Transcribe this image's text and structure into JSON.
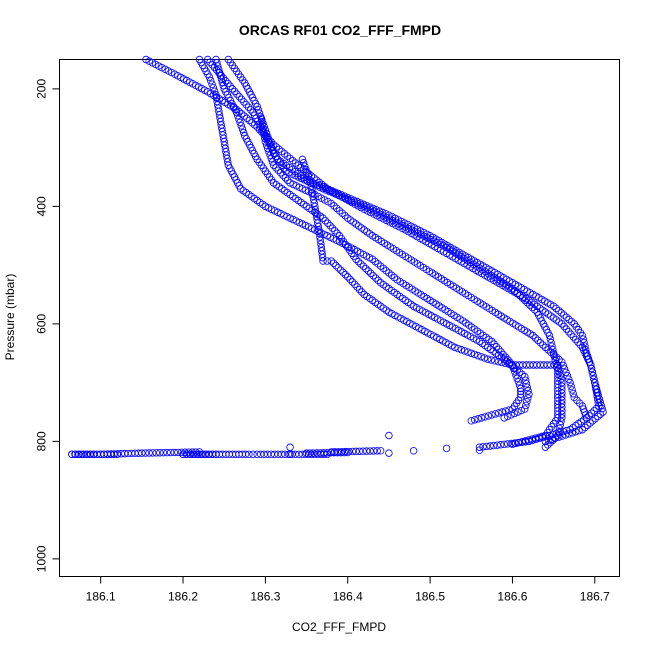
{
  "chart_data": {
    "type": "scatter",
    "title": "ORCAS RF01 CO2_FFF_FMPD",
    "xlabel": "CO2_FFF_FMPD",
    "ylabel": "Pressure (mbar)",
    "xlim": [
      186.05,
      186.73
    ],
    "ylim": [
      1030,
      150
    ],
    "y_inverted": true,
    "x_ticks": [
      186.1,
      186.2,
      186.3,
      186.4,
      186.5,
      186.6,
      186.7
    ],
    "x_tick_labels": [
      "186.1",
      "186.2",
      "186.3",
      "186.4",
      "186.5",
      "186.6",
      "186.7"
    ],
    "y_ticks": [
      200,
      400,
      600,
      800,
      1000
    ],
    "y_tick_labels": [
      "200",
      "400",
      "600",
      "800",
      "1000"
    ],
    "grid": false,
    "marker": "open-circle",
    "color": "#0000ff",
    "series": [
      {
        "points": [
          [
            186.155,
            150
          ],
          [
            186.19,
            175
          ],
          [
            186.23,
            205
          ],
          [
            186.265,
            235
          ],
          [
            186.29,
            265
          ],
          [
            186.31,
            295
          ],
          [
            186.34,
            330
          ],
          [
            186.375,
            370
          ],
          [
            186.42,
            405
          ],
          [
            186.47,
            440
          ],
          [
            186.52,
            480
          ],
          [
            186.57,
            520
          ],
          [
            186.62,
            560
          ],
          [
            186.66,
            600
          ],
          [
            186.685,
            640
          ],
          [
            186.695,
            670
          ],
          [
            186.7,
            700
          ],
          [
            186.71,
            750
          ],
          [
            186.685,
            780
          ],
          [
            186.64,
            800
          ],
          [
            186.56,
            815
          ],
          [
            186.45,
            820
          ],
          [
            186.33,
            822
          ],
          [
            186.24,
            822
          ],
          [
            186.2,
            822
          ]
        ]
      },
      {
        "points": [
          [
            186.22,
            150
          ],
          [
            186.232,
            180
          ],
          [
            186.24,
            210
          ],
          [
            186.245,
            250
          ],
          [
            186.25,
            290
          ],
          [
            186.255,
            330
          ],
          [
            186.27,
            370
          ],
          [
            186.3,
            400
          ],
          [
            186.345,
            430
          ],
          [
            186.39,
            460
          ],
          [
            186.43,
            490
          ],
          [
            186.46,
            525
          ],
          [
            186.5,
            560
          ],
          [
            186.54,
            595
          ],
          [
            186.575,
            630
          ],
          [
            186.6,
            670
          ],
          [
            186.61,
            710
          ],
          [
            186.61,
            725
          ],
          [
            186.6,
            745
          ],
          [
            186.55,
            765
          ],
          [
            186.45,
            790
          ],
          [
            186.33,
            810
          ],
          [
            186.22,
            818
          ],
          [
            186.15,
            820
          ],
          [
            186.1,
            822
          ],
          [
            186.065,
            822
          ]
        ]
      },
      {
        "points": [
          [
            186.23,
            150
          ],
          [
            186.26,
            200
          ],
          [
            186.285,
            240
          ],
          [
            186.3,
            280
          ],
          [
            186.315,
            320
          ],
          [
            186.35,
            355
          ],
          [
            186.4,
            385
          ],
          [
            186.45,
            415
          ],
          [
            186.5,
            450
          ],
          [
            186.55,
            490
          ],
          [
            186.6,
            530
          ],
          [
            186.65,
            570
          ],
          [
            186.675,
            600
          ],
          [
            186.685,
            620
          ],
          [
            186.69,
            650
          ],
          [
            186.695,
            670
          ],
          [
            186.7,
            700
          ],
          [
            186.705,
            740
          ],
          [
            186.69,
            760
          ],
          [
            186.67,
            780
          ],
          [
            186.62,
            800
          ],
          [
            186.56,
            810
          ],
          [
            186.48,
            816
          ],
          [
            186.4,
            819
          ],
          [
            186.35,
            820
          ]
        ]
      },
      {
        "points": [
          [
            186.255,
            150
          ],
          [
            186.275,
            190
          ],
          [
            186.29,
            230
          ],
          [
            186.3,
            270
          ],
          [
            186.31,
            310
          ],
          [
            186.325,
            340
          ],
          [
            186.37,
            370
          ],
          [
            186.42,
            400
          ],
          [
            186.47,
            435
          ],
          [
            186.52,
            470
          ],
          [
            186.56,
            505
          ],
          [
            186.6,
            540
          ],
          [
            186.63,
            580
          ],
          [
            186.645,
            620
          ],
          [
            186.65,
            650
          ],
          [
            186.655,
            680
          ],
          [
            186.655,
            720
          ],
          [
            186.655,
            760
          ],
          [
            186.64,
            790
          ],
          [
            186.6,
            805
          ],
          [
            186.52,
            812
          ],
          [
            186.44,
            816
          ],
          [
            186.38,
            818
          ]
        ]
      },
      {
        "points": [
          [
            186.24,
            150
          ],
          [
            186.25,
            200
          ],
          [
            186.265,
            240
          ],
          [
            186.275,
            280
          ],
          [
            186.29,
            320
          ],
          [
            186.31,
            360
          ],
          [
            186.34,
            390
          ],
          [
            186.37,
            420
          ],
          [
            186.39,
            450
          ],
          [
            186.41,
            490
          ],
          [
            186.44,
            530
          ],
          [
            186.48,
            570
          ],
          [
            186.52,
            600
          ],
          [
            186.56,
            630
          ],
          [
            186.59,
            660
          ],
          [
            186.615,
            690
          ],
          [
            186.62,
            720
          ],
          [
            186.615,
            745
          ],
          [
            186.59,
            760
          ]
        ]
      },
      {
        "points": [
          [
            186.345,
            320
          ],
          [
            186.355,
            360
          ],
          [
            186.36,
            400
          ],
          [
            186.365,
            440
          ],
          [
            186.368,
            470
          ],
          [
            186.37,
            493
          ],
          [
            186.38,
            493
          ],
          [
            186.4,
            520
          ],
          [
            186.42,
            550
          ],
          [
            186.45,
            580
          ],
          [
            186.49,
            610
          ],
          [
            186.53,
            640
          ],
          [
            186.57,
            660
          ],
          [
            186.6,
            670
          ],
          [
            186.655,
            670
          ],
          [
            186.66,
            700
          ],
          [
            186.66,
            730
          ],
          [
            186.66,
            760
          ],
          [
            186.655,
            790
          ],
          [
            186.64,
            810
          ]
        ]
      },
      {
        "points": [
          [
            186.295,
            250
          ],
          [
            186.3,
            290
          ],
          [
            186.31,
            330
          ],
          [
            186.33,
            360
          ],
          [
            186.36,
            380
          ],
          [
            186.38,
            395
          ],
          [
            186.4,
            420
          ],
          [
            186.43,
            450
          ],
          [
            186.47,
            485
          ],
          [
            186.51,
            520
          ],
          [
            186.55,
            555
          ],
          [
            186.59,
            590
          ],
          [
            186.625,
            620
          ],
          [
            186.64,
            640
          ],
          [
            186.66,
            665
          ],
          [
            186.67,
            700
          ],
          [
            186.675,
            725
          ],
          [
            186.685,
            740
          ],
          [
            186.69,
            760
          ]
        ]
      },
      {
        "points": [
          [
            186.2,
            822
          ],
          [
            186.22,
            822
          ],
          [
            186.24,
            822
          ],
          [
            186.26,
            822
          ],
          [
            186.28,
            822
          ],
          [
            186.29,
            822
          ],
          [
            186.345,
            822
          ],
          [
            186.36,
            822
          ],
          [
            186.375,
            822
          ],
          [
            186.065,
            822
          ],
          [
            186.08,
            822
          ],
          [
            186.1,
            822
          ],
          [
            186.12,
            822
          ]
        ]
      }
    ]
  }
}
